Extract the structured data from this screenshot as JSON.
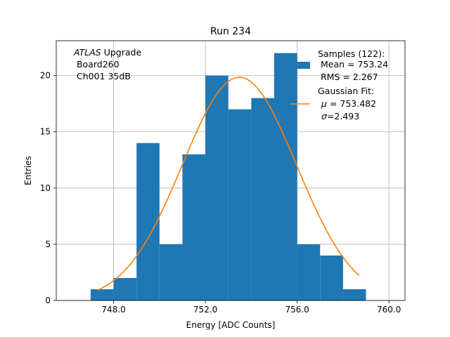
{
  "chart_data": {
    "type": "bar",
    "title": "Run 234",
    "xlabel": "Energy [ADC Counts]",
    "ylabel": "Entries",
    "xlim": [
      745.5,
      760.7
    ],
    "ylim": [
      0,
      23.1
    ],
    "x_ticks": [
      748,
      752,
      756,
      760
    ],
    "x_tick_labels": [
      "748.0",
      "752.0",
      "756.0",
      "760.0"
    ],
    "y_ticks": [
      0,
      5,
      10,
      15,
      20
    ],
    "y_tick_labels": [
      "0",
      "5",
      "10",
      "15",
      "20"
    ],
    "grid": true,
    "bin_edges": [
      747,
      748,
      749,
      750,
      751,
      752,
      753,
      754,
      755,
      756,
      757,
      758,
      759
    ],
    "counts": [
      1,
      2,
      14,
      5,
      13,
      20,
      17,
      18,
      22,
      5,
      4,
      1
    ],
    "bar_color": "#1f77b4",
    "fit": {
      "name": "Gaussian Fit",
      "mu": 753.482,
      "sigma": 2.493,
      "amplitude": 19.85,
      "x_range": [
        747.3,
        758.7
      ],
      "color": "#ff7f0e"
    },
    "annotation": {
      "italic": "ATLAS",
      "line1_rest": " Upgrade",
      "line2": " Board260",
      "line3": " Ch001 35dB"
    },
    "legend": {
      "placement": "top-right",
      "samples_line1": "Samples (122):",
      "samples_line2": " Mean = 753.24",
      "samples_line3": " RMS = 2.267",
      "fit_line1": "Gaussian Fit:",
      "fit_line2_symbol": "μ",
      "fit_line2_rest": " = 753.482",
      "fit_line3_symbol": "σ",
      "fit_line3_rest": "=2.493"
    }
  }
}
